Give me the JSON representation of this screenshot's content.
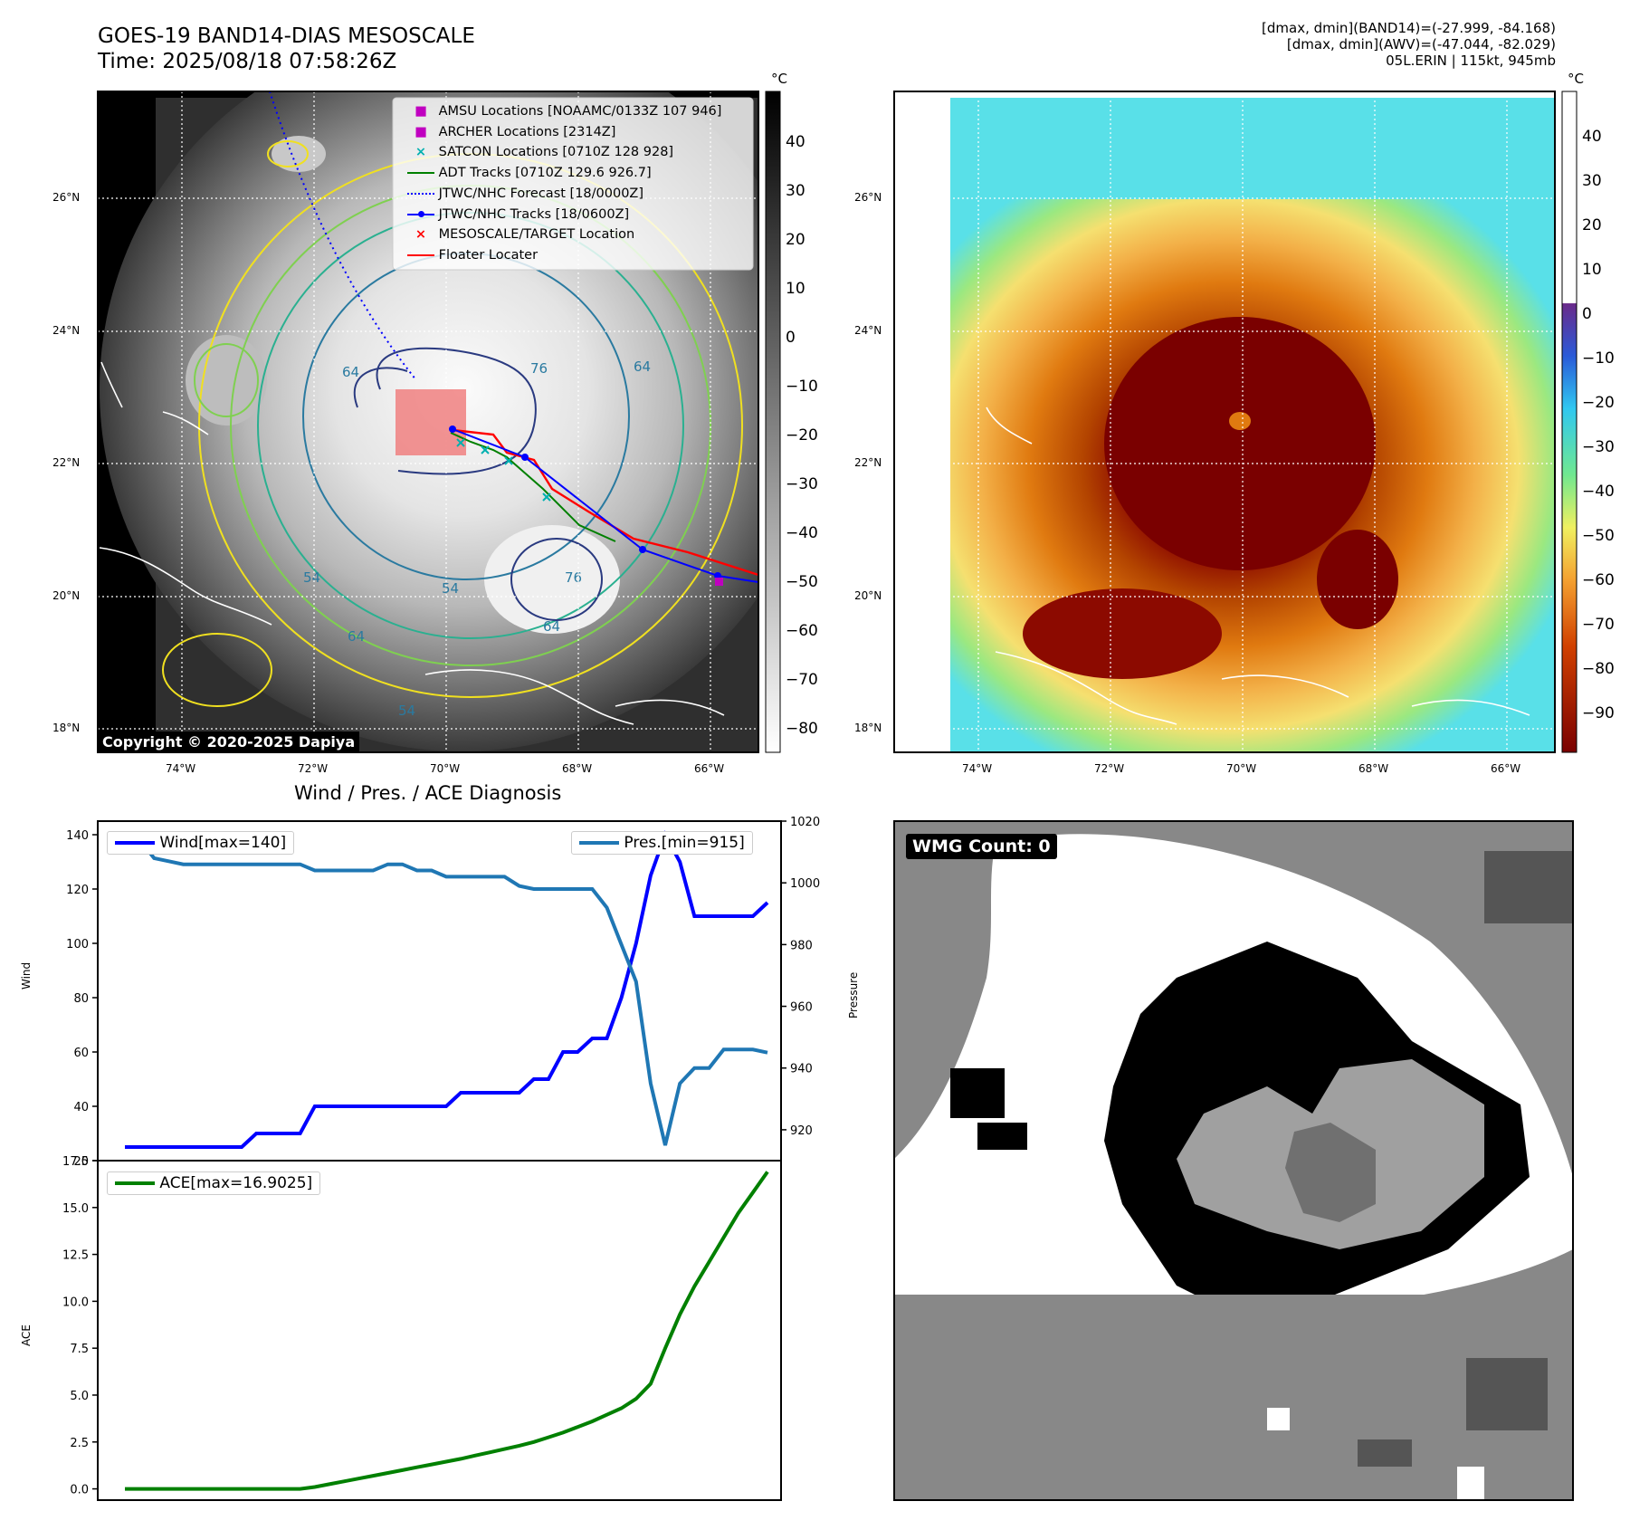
{
  "header": {
    "title_line1": "GOES-19 BAND14-DIAS MESOSCALE",
    "title_line2": "Time: 2025/08/18 07:58:26Z",
    "meta_line1": "[dmax, dmin](BAND14)=(-27.999, -84.168)",
    "meta_line2": "[dmax, dmin](AWV)=(-47.044, -82.029)",
    "meta_line3": "05L.ERIN | 115kt, 945mb"
  },
  "map_left": {
    "lon_ticks": [
      "74°W",
      "72°W",
      "70°W",
      "68°W",
      "66°W"
    ],
    "lat_ticks": [
      "26°N",
      "24°N",
      "22°N",
      "20°N",
      "18°N"
    ],
    "colorbar_unit": "°C",
    "colorbar_ticks": [
      "40",
      "30",
      "20",
      "10",
      "0",
      "−10",
      "−20",
      "−30",
      "−40",
      "−50",
      "−60",
      "−70",
      "−80"
    ],
    "copyright": "Copyright © 2020-2025 Dapiya",
    "contour_labels": [
      "64",
      "76",
      "64",
      "54",
      "76",
      "64",
      "54",
      "54",
      "64"
    ],
    "legend": [
      {
        "label": "AMSU Locations [NOAAMC/0133Z 107 946]",
        "color": "#c000c0",
        "kind": "square"
      },
      {
        "label": "ARCHER Locations [2314Z]",
        "color": "#c000c0",
        "kind": "square"
      },
      {
        "label": "SATCON Locations [0710Z 128 928]",
        "color": "#00b0b0",
        "kind": "x"
      },
      {
        "label": "ADT Tracks [0710Z 129.6 926.7]",
        "color": "#008000",
        "kind": "line"
      },
      {
        "label": "JTWC/NHC Forecast [18/0000Z]",
        "color": "#0000ff",
        "kind": "dotted"
      },
      {
        "label": "JTWC/NHC Tracks [18/0600Z]",
        "color": "#0000ff",
        "kind": "linedot"
      },
      {
        "label": "MESOSCALE/TARGET Location",
        "color": "#ff0000",
        "kind": "x"
      },
      {
        "label": "Floater Locater",
        "color": "#ff0000",
        "kind": "line"
      }
    ]
  },
  "map_right": {
    "lon_ticks": [
      "74°W",
      "72°W",
      "70°W",
      "68°W",
      "66°W"
    ],
    "lat_ticks": [
      "26°N",
      "24°N",
      "22°N",
      "20°N",
      "18°N"
    ],
    "colorbar_unit": "°C",
    "colorbar_ticks": [
      "40",
      "30",
      "20",
      "10",
      "0",
      "−10",
      "−20",
      "−30",
      "−40",
      "−50",
      "−60",
      "−70",
      "−80",
      "−90"
    ]
  },
  "diagnosis": {
    "title": "Wind / Pres. / ACE Diagnosis",
    "wind_legend": "Wind[max=140]",
    "pres_legend": "Pres.[min=915]",
    "ace_legend": "ACE[max=16.9025]",
    "wind_ylabel": "Wind",
    "pres_ylabel": "Pressure",
    "ace_ylabel": "ACE"
  },
  "wmg": {
    "label": "WMG Count: 0"
  },
  "chart_data": [
    {
      "type": "line",
      "title": "Wind / Pres. / ACE Diagnosis",
      "ylabel": "Wind",
      "ylim": [
        20,
        145
      ],
      "yticks": [
        20,
        40,
        60,
        80,
        100,
        120,
        140
      ],
      "series": [
        {
          "name": "Wind[max=140]",
          "color": "#0000ff",
          "values": [
            25,
            25,
            25,
            25,
            25,
            25,
            25,
            25,
            25,
            30,
            30,
            30,
            30,
            40,
            40,
            40,
            40,
            40,
            40,
            40,
            40,
            40,
            40,
            45,
            45,
            45,
            45,
            45,
            50,
            50,
            60,
            60,
            65,
            65,
            80,
            100,
            125,
            140,
            130,
            110,
            110,
            110,
            110,
            110,
            115
          ]
        }
      ]
    },
    {
      "type": "line",
      "ylabel": "Pressure",
      "ylim": [
        910,
        1020
      ],
      "yticks": [
        920,
        940,
        960,
        980,
        1000,
        1020
      ],
      "series": [
        {
          "name": "Pres.[min=915]",
          "color": "#1f77b4",
          "values": [
            1014,
            1014,
            1008,
            1007,
            1006,
            1006,
            1006,
            1006,
            1006,
            1006,
            1006,
            1006,
            1006,
            1004,
            1004,
            1004,
            1004,
            1004,
            1006,
            1006,
            1004,
            1004,
            1002,
            1002,
            1002,
            1002,
            1002,
            999,
            998,
            998,
            998,
            998,
            998,
            992,
            980,
            968,
            935,
            915,
            935,
            940,
            940,
            946,
            946,
            946,
            945
          ]
        }
      ]
    },
    {
      "type": "line",
      "ylabel": "ACE",
      "ylim": [
        -0.6,
        17.5
      ],
      "yticks": [
        0.0,
        2.5,
        5.0,
        7.5,
        10.0,
        12.5,
        15.0,
        17.5
      ],
      "series": [
        {
          "name": "ACE[max=16.9025]",
          "color": "#008000",
          "values": [
            0,
            0,
            0,
            0,
            0,
            0,
            0,
            0,
            0,
            0,
            0,
            0,
            0,
            0.1,
            0.25,
            0.4,
            0.55,
            0.7,
            0.85,
            1.0,
            1.15,
            1.3,
            1.45,
            1.6,
            1.78,
            1.95,
            2.12,
            2.3,
            2.5,
            2.75,
            3.0,
            3.3,
            3.6,
            3.95,
            4.3,
            4.8,
            5.6,
            7.5,
            9.3,
            10.8,
            12.1,
            13.4,
            14.7,
            15.8,
            16.9025
          ]
        }
      ]
    }
  ]
}
